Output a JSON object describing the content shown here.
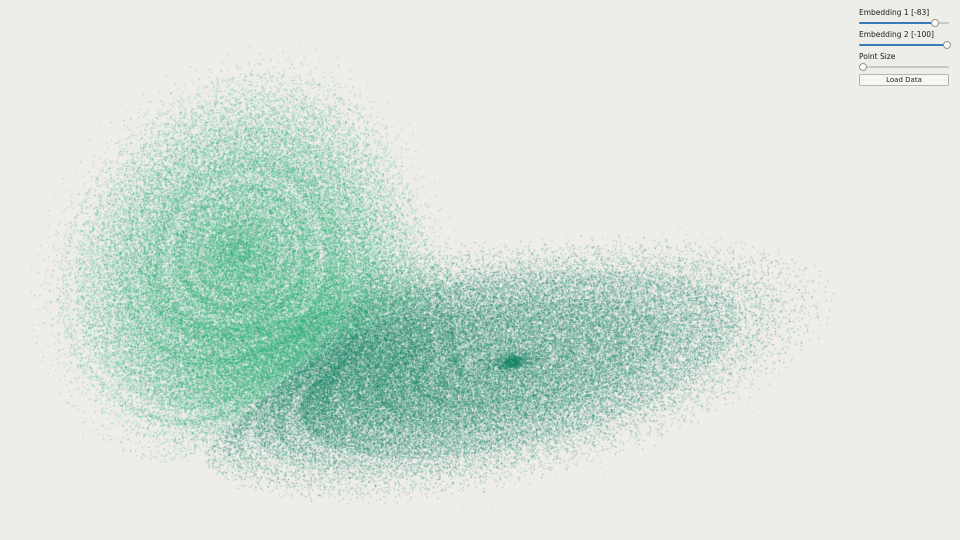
{
  "controls": {
    "embedding1": {
      "label": "Embedding 1 [-83]",
      "fraction": 0.83
    },
    "embedding2": {
      "label": "Embedding 2 [-100]",
      "fraction": 1.0
    },
    "point_size": {
      "label": "Point Size",
      "fraction": 0.0
    },
    "load_button": "Load Data"
  },
  "colors": {
    "background": "#efedea",
    "points_light": "#2bbf7a",
    "points_dark": "#0b6e5a"
  }
}
